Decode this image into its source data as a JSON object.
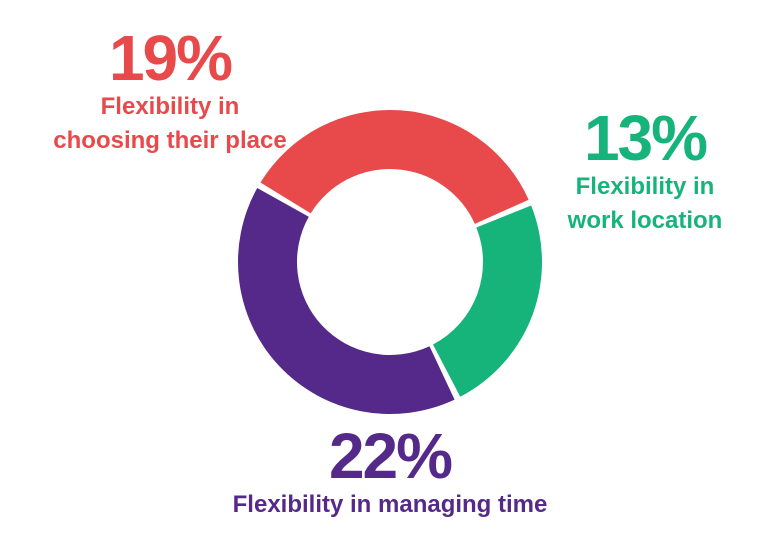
{
  "chart_data": {
    "type": "pie",
    "style": "donut",
    "title": "",
    "slices": [
      {
        "label_lines": [
          "Flexibility in",
          "choosing their place"
        ],
        "value_label": "19%",
        "value": 19,
        "color": "#E84A4C"
      },
      {
        "label_lines": [
          "Flexibility in",
          "work location"
        ],
        "value_label": "13%",
        "value": 13,
        "color": "#16B47A"
      },
      {
        "label_lines": [
          "Flexibility in managing time"
        ],
        "value_label": "22%",
        "value": 22,
        "color": "#55298A"
      }
    ],
    "legend": "none"
  }
}
